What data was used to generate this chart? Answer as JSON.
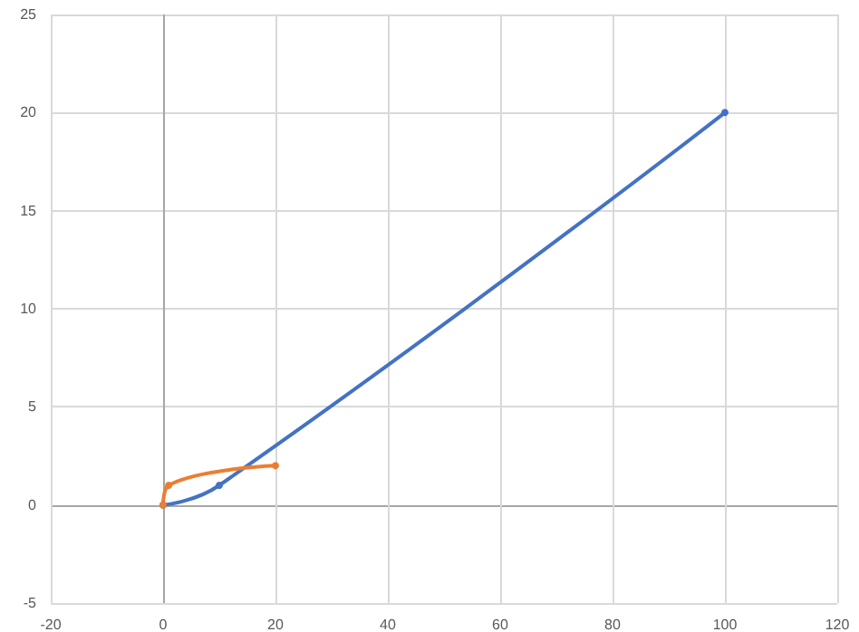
{
  "chart_data": {
    "type": "line",
    "series": [
      {
        "color": "#4472c4",
        "x": [
          0,
          10,
          100
        ],
        "values": [
          0,
          1,
          20
        ]
      },
      {
        "color": "#ed7d31",
        "x": [
          0,
          1,
          20
        ],
        "values": [
          0,
          1,
          2
        ]
      }
    ],
    "xlim": [
      -20,
      120
    ],
    "xticks": [
      -20,
      0,
      20,
      40,
      60,
      80,
      100,
      120
    ],
    "ylim": [
      -5,
      25
    ],
    "yticks": [
      -5,
      0,
      5,
      10,
      15,
      20,
      25
    ],
    "grid": true,
    "marker": "circle",
    "line_style": "solid"
  }
}
